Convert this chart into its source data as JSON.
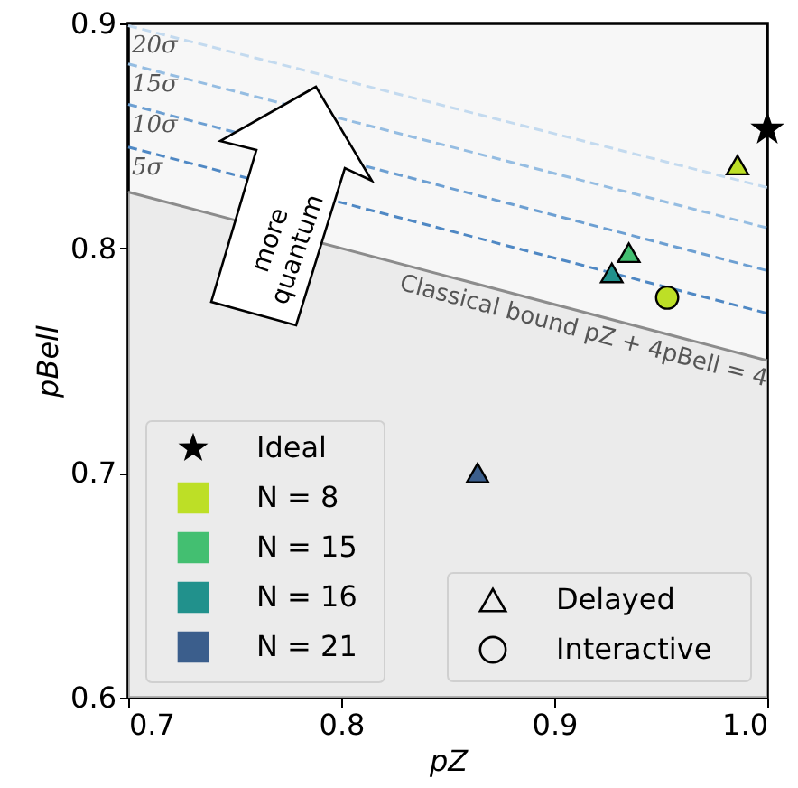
{
  "chart_data": {
    "type": "scatter",
    "xlabel": "pZ",
    "ylabel": "pBell",
    "xlim": [
      0.7,
      1.0
    ],
    "ylim": [
      0.6,
      0.9
    ],
    "xticks": [
      0.7,
      0.8,
      0.9,
      {
        "value": 1.0,
        "label": "1.0"
      }
    ],
    "yticks": [
      0.6,
      0.7,
      0.8,
      0.9
    ],
    "legend": "bottom left",
    "annotations": [
      "more quantum"
    ],
    "series": [
      {
        "name": "Classical bound pZ + 4pBell = 4",
        "type": "area",
        "color": "#e5e5e5",
        "x": [
          0.7,
          1.0
        ],
        "values": [
          0.825,
          0.75
        ]
      },
      {
        "name": "5σ",
        "type": "line",
        "line_style": "dashed",
        "color": "#4f88c4",
        "x": [
          0.7,
          1.0
        ],
        "values": [
          0.845,
          0.771
        ]
      },
      {
        "name": "10σ",
        "type": "line",
        "line_style": "dashed",
        "color": "#6c9fd2",
        "x": [
          0.7,
          1.0
        ],
        "values": [
          0.864,
          0.79
        ]
      },
      {
        "name": "15σ",
        "type": "line",
        "line_style": "dashed",
        "color": "#95bde2",
        "x": [
          0.7,
          1.0
        ],
        "values": [
          0.882,
          0.809
        ]
      },
      {
        "name": "20σ",
        "type": "line",
        "line_style": "dashed",
        "color": "#c3daef",
        "x": [
          0.7,
          1.0
        ],
        "values": [
          0.899,
          0.827
        ]
      },
      {
        "name": "Ideal",
        "type": "scatter",
        "marker": "star",
        "color": "#000000",
        "x": [
          1.0
        ],
        "values": [
          0.853
        ]
      },
      {
        "name": "N = 8",
        "type": "scatter",
        "marker": "triangle",
        "color": "#bddf26",
        "x": [
          0.986
        ],
        "values": [
          0.837
        ]
      },
      {
        "name": "N = 15",
        "type": "scatter",
        "marker": "triangle",
        "color": "#43bf71",
        "x": [
          0.935
        ],
        "values": [
          0.798
        ]
      },
      {
        "name": "N = 16",
        "type": "scatter",
        "marker": "triangle",
        "color": "#21918c",
        "x": [
          0.927
        ],
        "values": [
          0.789
        ]
      },
      {
        "name": "N = 21",
        "type": "scatter",
        "marker": "triangle",
        "color": "#3b5e8c",
        "x": [
          0.864
        ],
        "values": [
          0.7
        ]
      },
      {
        "type": "scatter",
        "marker": "circle",
        "color": "#bddf26",
        "x": [
          0.953
        ],
        "values": [
          0.778
        ]
      },
      {
        "name": "Delayed",
        "type": "scatter",
        "marker": "triangle"
      },
      {
        "name": "Interactive",
        "type": "scatter",
        "marker": "circle"
      }
    ]
  }
}
